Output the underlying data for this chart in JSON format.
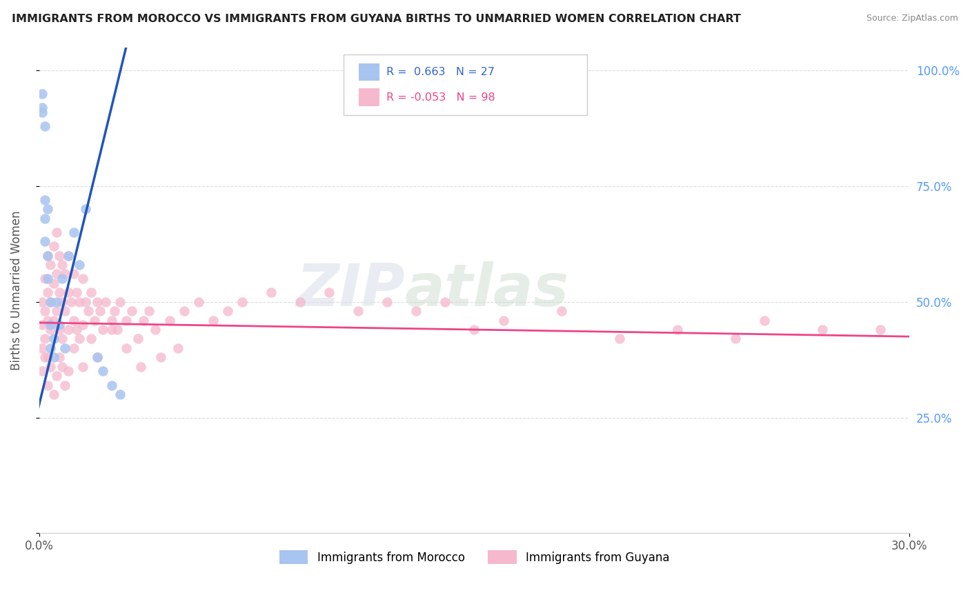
{
  "title": "IMMIGRANTS FROM MOROCCO VS IMMIGRANTS FROM GUYANA BIRTHS TO UNMARRIED WOMEN CORRELATION CHART",
  "source": "Source: ZipAtlas.com",
  "ylabel": "Births to Unmarried Women",
  "xlim": [
    0.0,
    0.3
  ],
  "ylim": [
    0.0,
    1.05
  ],
  "r_morocco": 0.663,
  "n_morocco": 27,
  "r_guyana": -0.053,
  "n_guyana": 98,
  "morocco_color": "#a8c4f0",
  "guyana_color": "#f5b8cc",
  "morocco_line_color": "#2255bb",
  "guyana_line_color": "#ee4488",
  "watermark_zip": "ZIP",
  "watermark_atlas": "atlas",
  "background_color": "#ffffff",
  "grid_color": "#dddddd",
  "tick_color": "#5599ff",
  "legend1_label": "Immigrants from Morocco",
  "legend2_label": "Immigrants from Guyana",
  "morocco_x": [
    0.001,
    0.001,
    0.001,
    0.002,
    0.002,
    0.002,
    0.002,
    0.003,
    0.003,
    0.003,
    0.004,
    0.004,
    0.004,
    0.005,
    0.005,
    0.006,
    0.007,
    0.008,
    0.009,
    0.01,
    0.012,
    0.014,
    0.016,
    0.02,
    0.022,
    0.025,
    0.028
  ],
  "morocco_y": [
    0.95,
    0.92,
    0.91,
    0.88,
    0.72,
    0.68,
    0.63,
    0.7,
    0.6,
    0.55,
    0.5,
    0.45,
    0.4,
    0.42,
    0.38,
    0.5,
    0.45,
    0.55,
    0.4,
    0.6,
    0.65,
    0.58,
    0.7,
    0.38,
    0.35,
    0.32,
    0.3
  ],
  "guyana_x": [
    0.001,
    0.001,
    0.001,
    0.002,
    0.002,
    0.002,
    0.003,
    0.003,
    0.003,
    0.003,
    0.004,
    0.004,
    0.004,
    0.005,
    0.005,
    0.005,
    0.006,
    0.006,
    0.006,
    0.007,
    0.007,
    0.007,
    0.008,
    0.008,
    0.008,
    0.009,
    0.009,
    0.01,
    0.01,
    0.01,
    0.011,
    0.012,
    0.012,
    0.013,
    0.013,
    0.014,
    0.014,
    0.015,
    0.015,
    0.016,
    0.017,
    0.018,
    0.019,
    0.02,
    0.021,
    0.022,
    0.023,
    0.025,
    0.026,
    0.027,
    0.028,
    0.03,
    0.032,
    0.034,
    0.036,
    0.038,
    0.04,
    0.042,
    0.045,
    0.048,
    0.05,
    0.055,
    0.06,
    0.065,
    0.07,
    0.08,
    0.09,
    0.1,
    0.11,
    0.12,
    0.13,
    0.14,
    0.15,
    0.16,
    0.18,
    0.2,
    0.22,
    0.24,
    0.25,
    0.27,
    0.001,
    0.002,
    0.003,
    0.004,
    0.005,
    0.006,
    0.007,
    0.008,
    0.009,
    0.01,
    0.012,
    0.015,
    0.018,
    0.02,
    0.025,
    0.03,
    0.035,
    0.29
  ],
  "guyana_y": [
    0.5,
    0.45,
    0.4,
    0.55,
    0.48,
    0.42,
    0.6,
    0.52,
    0.46,
    0.38,
    0.58,
    0.5,
    0.44,
    0.62,
    0.54,
    0.46,
    0.65,
    0.56,
    0.48,
    0.6,
    0.52,
    0.44,
    0.58,
    0.5,
    0.42,
    0.56,
    0.48,
    0.6,
    0.52,
    0.44,
    0.5,
    0.56,
    0.46,
    0.52,
    0.44,
    0.5,
    0.42,
    0.55,
    0.45,
    0.5,
    0.48,
    0.52,
    0.46,
    0.5,
    0.48,
    0.44,
    0.5,
    0.46,
    0.48,
    0.44,
    0.5,
    0.46,
    0.48,
    0.42,
    0.46,
    0.48,
    0.44,
    0.38,
    0.46,
    0.4,
    0.48,
    0.5,
    0.46,
    0.48,
    0.5,
    0.52,
    0.5,
    0.52,
    0.48,
    0.5,
    0.48,
    0.5,
    0.44,
    0.46,
    0.48,
    0.42,
    0.44,
    0.42,
    0.46,
    0.44,
    0.35,
    0.38,
    0.32,
    0.36,
    0.3,
    0.34,
    0.38,
    0.36,
    0.32,
    0.35,
    0.4,
    0.36,
    0.42,
    0.38,
    0.44,
    0.4,
    0.36,
    0.44
  ],
  "morocco_trend_x": [
    -0.003,
    0.03
  ],
  "morocco_trend_y": [
    0.2,
    1.05
  ],
  "guyana_trend_x": [
    0.0,
    0.3
  ],
  "guyana_trend_y": [
    0.455,
    0.425
  ]
}
